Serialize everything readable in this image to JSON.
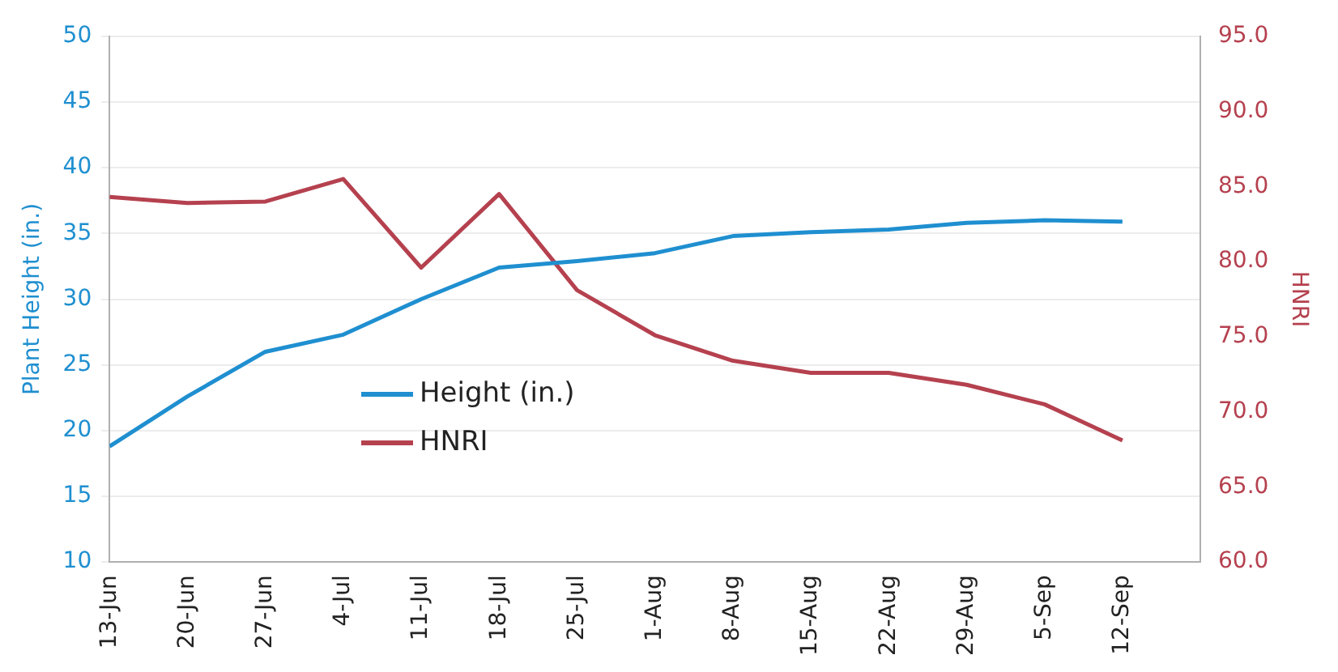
{
  "chart_data": {
    "type": "line",
    "categories": [
      "13-Jun",
      "20-Jun",
      "27-Jun",
      "4-Jul",
      "11-Jul",
      "18-Jul",
      "25-Jul",
      "1-Aug",
      "8-Aug",
      "15-Aug",
      "22-Aug",
      "29-Aug",
      "5-Sep",
      "12-Sep"
    ],
    "ylabel": "Plant Height (in.)",
    "y2label": "HNRI",
    "series": [
      {
        "name": "Height (in.)",
        "color": "#1f8fd0",
        "values": [
          18.8,
          22.6,
          26.0,
          27.3,
          30.0,
          32.4,
          32.9,
          33.5,
          34.8,
          35.1,
          35.3,
          35.8,
          36.0,
          35.9
        ]
      },
      {
        "name": "HNRI",
        "color": "#b5414f",
        "axis": "y2",
        "values": [
          84.3,
          83.9,
          84.0,
          85.5,
          79.6,
          84.5,
          78.1,
          75.1,
          73.4,
          72.6,
          72.6,
          71.8,
          70.5,
          68.1
        ]
      }
    ],
    "ylim": [
      10,
      50
    ],
    "yticks": [
      10,
      15,
      20,
      25,
      30,
      35,
      40,
      45,
      50
    ],
    "y2lim": [
      60,
      95
    ],
    "y2ticks": [
      {
        "value": 60,
        "label": "60.0"
      },
      {
        "value": 65,
        "label": "65.0"
      },
      {
        "value": 70,
        "label": "70.0"
      },
      {
        "value": 75,
        "label": "75.0"
      },
      {
        "value": 80,
        "label": "80.0"
      },
      {
        "value": 85,
        "label": "85.0"
      },
      {
        "value": 90,
        "label": "90.0"
      },
      {
        "value": 95,
        "label": "95.0"
      }
    ],
    "grid": "y",
    "legend": "bottom left",
    "marker": "none",
    "line_style": "solid"
  }
}
